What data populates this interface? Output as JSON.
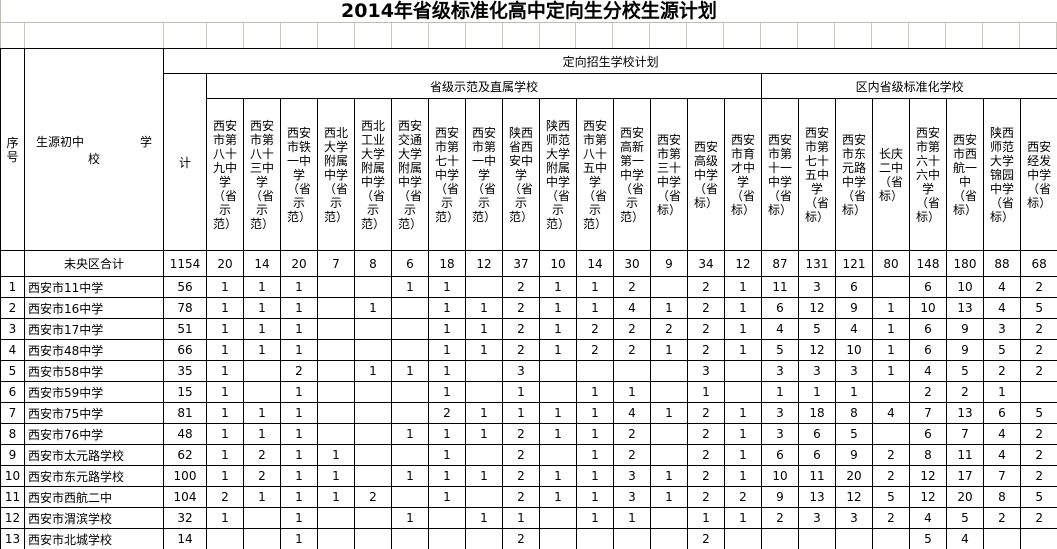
{
  "title": "2014年省级标准化高中定向生分校生源计划",
  "table": {
    "corner": {
      "seq_label": "序号",
      "school_label_left": "生源初中",
      "school_label_right": "学",
      "school_label_line2": "校"
    },
    "plan_header": "定向招生学校计划",
    "total_header": "计",
    "group1": {
      "label": "省级示范及直属学校",
      "schools": [
        "西安市第八十九中学（省示范）",
        "西安市第八十三中学（省示范）",
        "西安市铁一中学（省示范）",
        "西北大学附属中学（省示范）",
        "西北工业大学附属中学（省示范）",
        "西安交通大学附属中学（省示范）",
        "西安市第七十中学（省示范）",
        "西安市第一中学（省示范）",
        "陕西省西安中学（省示范）",
        "陕西师范大学附属中学（省示范）",
        "西安市第八十五中学（省示范）",
        "西安高新第一中学（省示范）",
        "西安市第三十中学（省标）",
        "西安高级中学（省标）",
        "西安市育才中学（省标）"
      ]
    },
    "group2": {
      "label": "区内省级标准化学校",
      "schools": [
        "西安市第十一中学（省标）",
        "西安市第七十五中学（省标）",
        "西安市东元路中学（省标）",
        "长庆二中（省标）",
        "西安市第六十六中学（省标）",
        "西安市西航一中（省标）",
        "陕西师范大学锦园中学（省标）",
        "西安经发中学（省标）"
      ]
    },
    "summary": {
      "label": "未央区合计",
      "total": 1154,
      "values": [
        20,
        14,
        20,
        7,
        8,
        6,
        18,
        12,
        37,
        10,
        14,
        30,
        9,
        34,
        12,
        87,
        131,
        121,
        80,
        148,
        180,
        88,
        68
      ]
    },
    "rows": [
      {
        "seq": 1,
        "school": "西安市11中学",
        "total": 56,
        "values": [
          1,
          1,
          1,
          "",
          "",
          1,
          1,
          "",
          2,
          1,
          1,
          2,
          "",
          2,
          1,
          11,
          3,
          6,
          "",
          6,
          10,
          4,
          2
        ]
      },
      {
        "seq": 2,
        "school": "西安市16中学",
        "total": 78,
        "values": [
          1,
          1,
          1,
          "",
          1,
          "",
          1,
          1,
          2,
          1,
          1,
          4,
          1,
          2,
          1,
          6,
          12,
          9,
          1,
          10,
          13,
          4,
          5
        ]
      },
      {
        "seq": 3,
        "school": "西安市17中学",
        "total": 51,
        "values": [
          1,
          1,
          1,
          "",
          "",
          "",
          1,
          1,
          2,
          1,
          2,
          2,
          2,
          2,
          1,
          4,
          5,
          4,
          1,
          6,
          9,
          3,
          2
        ]
      },
      {
        "seq": 4,
        "school": "西安市48中学",
        "total": 66,
        "values": [
          1,
          1,
          1,
          "",
          "",
          "",
          1,
          1,
          2,
          1,
          2,
          2,
          1,
          2,
          1,
          5,
          12,
          10,
          1,
          6,
          9,
          5,
          2
        ]
      },
      {
        "seq": 5,
        "school": "西安市58中学",
        "total": 35,
        "values": [
          1,
          "",
          2,
          "",
          1,
          1,
          1,
          "",
          3,
          "",
          "",
          "",
          "",
          3,
          "",
          3,
          3,
          3,
          1,
          4,
          5,
          2,
          2
        ]
      },
      {
        "seq": 6,
        "school": "西安市59中学",
        "total": 15,
        "values": [
          1,
          "",
          1,
          "",
          "",
          "",
          1,
          "",
          1,
          "",
          1,
          1,
          "",
          1,
          "",
          1,
          1,
          1,
          "",
          2,
          2,
          1,
          ""
        ]
      },
      {
        "seq": 7,
        "school": "西安市75中学",
        "total": 81,
        "values": [
          1,
          1,
          1,
          "",
          "",
          "",
          2,
          1,
          1,
          1,
          1,
          4,
          1,
          2,
          1,
          3,
          18,
          8,
          4,
          7,
          13,
          6,
          5
        ]
      },
      {
        "seq": 8,
        "school": "西安市76中学",
        "total": 48,
        "values": [
          1,
          1,
          1,
          "",
          "",
          1,
          1,
          1,
          2,
          1,
          1,
          2,
          "",
          2,
          1,
          3,
          6,
          5,
          "",
          6,
          7,
          4,
          2
        ]
      },
      {
        "seq": 9,
        "school": "西安市太元路学校",
        "total": 62,
        "values": [
          1,
          2,
          1,
          1,
          "",
          "",
          1,
          "",
          2,
          "",
          1,
          2,
          "",
          2,
          1,
          6,
          6,
          9,
          2,
          8,
          11,
          4,
          2
        ]
      },
      {
        "seq": 10,
        "school": "西安市东元路学校",
        "total": 100,
        "values": [
          1,
          2,
          1,
          1,
          "",
          1,
          1,
          1,
          2,
          1,
          1,
          3,
          1,
          2,
          1,
          10,
          11,
          20,
          2,
          12,
          17,
          7,
          2
        ]
      },
      {
        "seq": 11,
        "school": "西安市西航二中",
        "total": 104,
        "values": [
          2,
          1,
          1,
          1,
          2,
          "",
          1,
          "",
          2,
          1,
          1,
          3,
          1,
          2,
          2,
          9,
          13,
          12,
          5,
          12,
          20,
          8,
          5
        ]
      },
      {
        "seq": 12,
        "school": "西安市渭滨学校",
        "total": 32,
        "values": [
          1,
          "",
          1,
          "",
          "",
          1,
          "",
          1,
          1,
          "",
          1,
          1,
          "",
          1,
          1,
          2,
          3,
          3,
          2,
          4,
          5,
          2,
          2
        ]
      },
      {
        "seq": 13,
        "school": "西安市北城学校",
        "total": 14,
        "values": [
          "",
          "",
          1,
          "",
          "",
          "",
          "",
          "",
          2,
          "",
          "",
          "",
          "",
          2,
          "",
          "",
          "",
          "",
          "",
          5,
          4,
          "",
          ""
        ]
      }
    ]
  }
}
